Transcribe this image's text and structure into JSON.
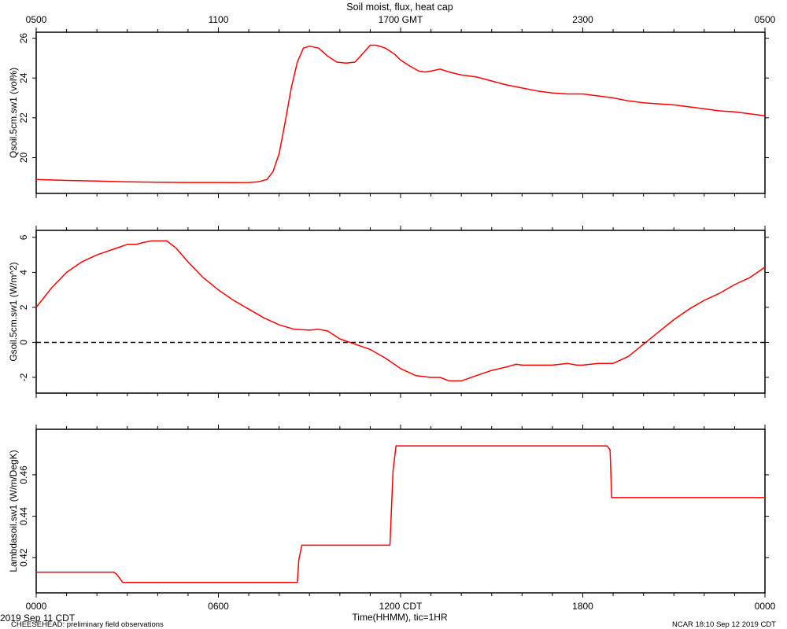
{
  "title": "Soil moist, flux, heat cap",
  "colors": {
    "series": "#ff0000",
    "axis": "#000000",
    "zero_line": "#000000"
  },
  "top_axis": {
    "tick_labels": [
      "0500",
      "1100",
      "1700 GMT",
      "2300",
      "0500"
    ],
    "tick_hours": [
      0,
      6,
      12,
      18,
      24
    ]
  },
  "bottom_axis": {
    "tick_labels": [
      "0000",
      "0600",
      "1200 CDT",
      "1800",
      "0000"
    ],
    "tick_hours": [
      0,
      6,
      12,
      18,
      24
    ],
    "xlabel": "Time(HHMM), tic=1HR",
    "date_label": "2019 Sep 11 CDT"
  },
  "footer": {
    "left": "CHEESEHEAD: preliminary field observations",
    "right": "NCAR 18:10 Sep 12 2019 CDT"
  },
  "chart_data": [
    {
      "type": "line",
      "ylabel": "Qsoil.5cm.sw1 (vol%)",
      "ylim": [
        18.2,
        26.3
      ],
      "yticks": [
        20,
        22,
        24,
        26
      ],
      "zero_line": false,
      "series": [
        {
          "x": [
            0,
            1,
            2,
            3,
            4,
            5,
            6,
            6.5,
            7,
            7.3,
            7.6,
            7.8,
            8.0,
            8.2,
            8.4,
            8.6,
            8.8,
            9.0,
            9.3,
            9.6,
            9.9,
            10.2,
            10.5,
            10.8,
            11.0,
            11.2,
            11.5,
            11.8,
            12.0,
            12.3,
            12.6,
            12.8,
            13.0,
            13.3,
            13.6,
            14.0,
            14.5,
            15.0,
            15.5,
            16.0,
            16.5,
            17.0,
            17.5,
            18.0,
            18.5,
            19.0,
            19.5,
            20.0,
            20.5,
            21.0,
            21.5,
            22.0,
            22.5,
            23.0,
            23.5,
            24.0
          ],
          "y": [
            18.9,
            18.85,
            18.82,
            18.78,
            18.76,
            18.75,
            18.75,
            18.74,
            18.75,
            18.78,
            18.9,
            19.3,
            20.2,
            21.8,
            23.5,
            24.8,
            25.5,
            25.6,
            25.5,
            25.1,
            24.8,
            24.75,
            24.8,
            25.3,
            25.65,
            25.65,
            25.5,
            25.2,
            24.9,
            24.6,
            24.35,
            24.3,
            24.35,
            24.45,
            24.3,
            24.15,
            24.05,
            23.85,
            23.65,
            23.5,
            23.35,
            23.25,
            23.2,
            23.2,
            23.1,
            23.0,
            22.85,
            22.75,
            22.7,
            22.65,
            22.55,
            22.45,
            22.35,
            22.3,
            22.2,
            22.1
          ]
        }
      ]
    },
    {
      "type": "line",
      "ylabel": "Gsoil.5cm.sw1 (W/m^2)",
      "ylim": [
        -2.9,
        6.4
      ],
      "yticks": [
        -2,
        0,
        2,
        4,
        6
      ],
      "zero_line": true,
      "series": [
        {
          "x": [
            0,
            0.5,
            1,
            1.5,
            2,
            2.5,
            3,
            3.3,
            3.5,
            3.8,
            4.0,
            4.3,
            4.6,
            5.0,
            5.5,
            6.0,
            6.5,
            7.0,
            7.5,
            8.0,
            8.5,
            9.0,
            9.3,
            9.6,
            10.0,
            10.5,
            11.0,
            11.5,
            12.0,
            12.5,
            13.0,
            13.3,
            13.6,
            14.0,
            14.5,
            15.0,
            15.5,
            15.8,
            16.0,
            16.5,
            17.0,
            17.5,
            17.8,
            18.0,
            18.5,
            19.0,
            19.5,
            20.0,
            20.5,
            21.0,
            21.5,
            22.0,
            22.5,
            23.0,
            23.5,
            24.0
          ],
          "y": [
            2.0,
            3.1,
            4.0,
            4.6,
            5.0,
            5.3,
            5.6,
            5.6,
            5.7,
            5.8,
            5.8,
            5.8,
            5.4,
            4.6,
            3.7,
            3.0,
            2.4,
            1.9,
            1.4,
            1.0,
            0.75,
            0.7,
            0.75,
            0.65,
            0.2,
            -0.1,
            -0.4,
            -0.9,
            -1.5,
            -1.9,
            -2.0,
            -2.0,
            -2.2,
            -2.2,
            -1.9,
            -1.6,
            -1.4,
            -1.25,
            -1.3,
            -1.3,
            -1.3,
            -1.2,
            -1.3,
            -1.3,
            -1.2,
            -1.2,
            -0.8,
            -0.1,
            0.6,
            1.3,
            1.9,
            2.4,
            2.8,
            3.3,
            3.7,
            4.3
          ]
        }
      ]
    },
    {
      "type": "line",
      "ylabel": "Lambdasoil.sw1 (W/m/DegK)",
      "ylim": [
        0.403,
        0.482
      ],
      "yticks": [
        0.42,
        0.44,
        0.46
      ],
      "zero_line": false,
      "series": [
        {
          "x": [
            0,
            2.55,
            2.65,
            2.75,
            2.85,
            8.6,
            8.65,
            8.75,
            11.65,
            11.75,
            11.85,
            18.8,
            18.9,
            18.95,
            24.0
          ],
          "y": [
            0.413,
            0.413,
            0.412,
            0.41,
            0.408,
            0.408,
            0.419,
            0.426,
            0.426,
            0.462,
            0.474,
            0.474,
            0.472,
            0.449,
            0.449
          ]
        }
      ]
    }
  ]
}
